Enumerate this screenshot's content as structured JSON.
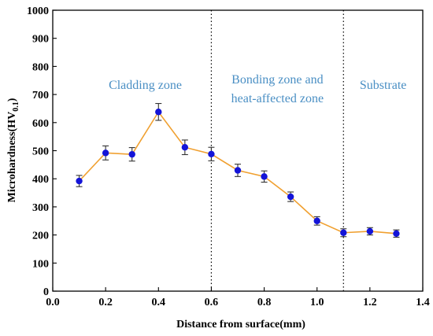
{
  "chart_data": {
    "type": "line",
    "xlabel": "Distance from surface(mm)",
    "ylabel_main": "Microhardness(HV",
    "ylabel_sub": "0.1",
    "ylabel_close": ")",
    "xlim": [
      0.0,
      1.4
    ],
    "ylim": [
      0,
      1000
    ],
    "xticks": [
      "0.0",
      "0.2",
      "0.4",
      "0.6",
      "0.8",
      "1.0",
      "1.2",
      "1.4"
    ],
    "xtick_values": [
      0.0,
      0.2,
      0.4,
      0.6,
      0.8,
      1.0,
      1.2,
      1.4
    ],
    "yticks": [
      "0",
      "100",
      "200",
      "300",
      "400",
      "500",
      "600",
      "700",
      "800",
      "900",
      "1000"
    ],
    "ytick_values": [
      0,
      100,
      200,
      300,
      400,
      500,
      600,
      700,
      800,
      900,
      1000
    ],
    "grid": false,
    "series": [
      {
        "x": [
          0.1,
          0.2,
          0.3,
          0.4,
          0.5,
          0.6,
          0.7,
          0.8,
          0.9,
          1.0,
          1.1,
          1.2,
          1.3
        ],
        "y": [
          392,
          492,
          487,
          638,
          512,
          488,
          430,
          408,
          336,
          250,
          208,
          213,
          205
        ],
        "err": [
          20,
          25,
          24,
          30,
          26,
          24,
          22,
          20,
          17,
          15,
          14,
          13,
          13
        ],
        "line_color": "#f0a030",
        "marker_color": "#1414d8"
      }
    ],
    "dividers": [
      0.6,
      1.1
    ],
    "zones": [
      {
        "lines": [
          "Cladding zone"
        ],
        "x": 0.35,
        "y": 720
      },
      {
        "lines": [
          "Bonding zone and",
          "heat-affected zone"
        ],
        "x": 0.85,
        "y": 740
      },
      {
        "lines": [
          "Substrate"
        ],
        "x": 1.25,
        "y": 720
      }
    ]
  }
}
